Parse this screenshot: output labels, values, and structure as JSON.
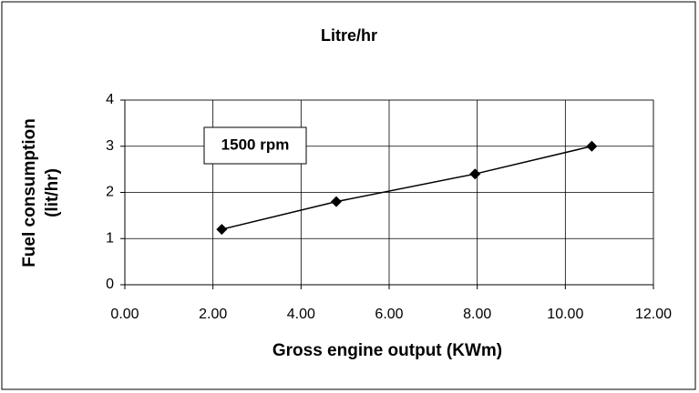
{
  "chart_data": {
    "type": "line",
    "title": "Litre/hr",
    "xlabel": "Gross engine output (KWm)",
    "ylabel": [
      "Fuel consumption",
      "(lit/hr)"
    ],
    "annotation": "1500 rpm",
    "x": [
      2.2,
      4.8,
      7.95,
      10.6
    ],
    "series": [
      {
        "name": "1500 rpm",
        "color": "#000000",
        "values": [
          1.2,
          1.8,
          2.4,
          3.0
        ]
      }
    ],
    "xlim": [
      0,
      12
    ],
    "xticks": [
      {
        "value": 0,
        "label": "0.00"
      },
      {
        "value": 2,
        "label": "2.00"
      },
      {
        "value": 4,
        "label": "4.00"
      },
      {
        "value": 6,
        "label": "6.00"
      },
      {
        "value": 8,
        "label": "8.00"
      },
      {
        "value": 10,
        "label": "10.00"
      },
      {
        "value": 12,
        "label": "12.00"
      }
    ],
    "ylim": [
      0,
      4
    ],
    "yticks": [
      0,
      1,
      2,
      3,
      4
    ],
    "grid": true
  }
}
